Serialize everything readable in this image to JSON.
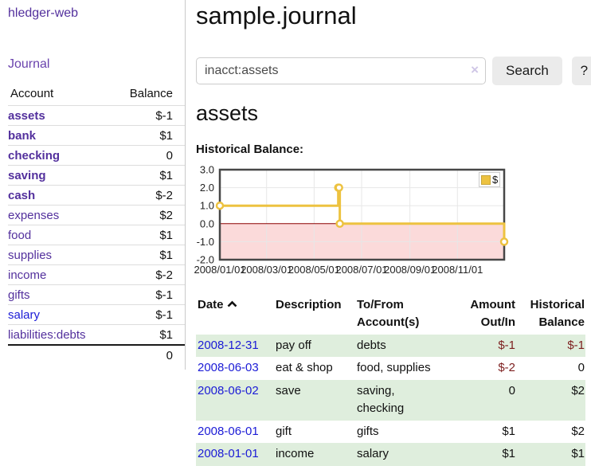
{
  "app": {
    "title": "hledger-web"
  },
  "sidebar": {
    "journal_link": "Journal",
    "table": {
      "headers": {
        "account": "Account",
        "balance": "Balance"
      },
      "rows": [
        {
          "name": "assets",
          "depth": 0,
          "balance": "$-1"
        },
        {
          "name": "bank",
          "depth": 1,
          "balance": "$1"
        },
        {
          "name": "checking",
          "depth": 2,
          "balance": "0"
        },
        {
          "name": "saving",
          "depth": 2,
          "balance": "$1"
        },
        {
          "name": "cash",
          "depth": 1,
          "balance": "$-2"
        },
        {
          "name": "expenses",
          "depth": 0,
          "balance": "$2"
        },
        {
          "name": "food",
          "depth": 1,
          "balance": "$1"
        },
        {
          "name": "supplies",
          "depth": 1,
          "balance": "$1"
        },
        {
          "name": "income",
          "depth": 0,
          "balance": "$-2"
        },
        {
          "name": "gifts",
          "depth": 1,
          "balance": "$-1"
        },
        {
          "name": "salary",
          "depth": 1,
          "balance": "$-1"
        },
        {
          "name": "liabilities:debts",
          "depth": 0,
          "balance": "$1"
        }
      ],
      "total": "0"
    }
  },
  "main": {
    "title": "sample.journal",
    "search": {
      "value": "inacct:assets",
      "clear_icon": "×",
      "button_label": "Search",
      "help_label": "?"
    },
    "account_heading": "assets",
    "chart_heading": "Historical Balance:"
  },
  "chart_data": {
    "type": "line",
    "title": "Historical Balance",
    "step": true,
    "series": [
      {
        "name": "$",
        "points": [
          {
            "date": "2008-01-01",
            "day": 0,
            "value": 1
          },
          {
            "date": "2008-06-01",
            "day": 152,
            "value": 2
          },
          {
            "date": "2008-06-02",
            "day": 153,
            "value": 2
          },
          {
            "date": "2008-06-03",
            "day": 154,
            "value": 0
          },
          {
            "date": "2008-12-31",
            "day": 365,
            "value": -1
          }
        ]
      }
    ],
    "ylim": [
      -2,
      3
    ],
    "xlim_days": [
      0,
      365
    ],
    "y_ticks": [
      3.0,
      2.0,
      1.0,
      0.0,
      -1.0,
      -2.0
    ],
    "x_ticks": [
      "2008/01/01",
      "2008/03/01",
      "2008/05/01",
      "2008/07/01",
      "2008/09/01",
      "2008/11/01"
    ],
    "x_tick_days": [
      0,
      60,
      121,
      182,
      244,
      305
    ],
    "legend": {
      "label": "$",
      "position": "top-right"
    },
    "grid": true,
    "colors": {
      "line": "#edc240",
      "negative_fill": "#fbdada",
      "zero_line": "#8b0000",
      "grid": "#e7e7e7",
      "border": "#474747"
    }
  },
  "register": {
    "headers": {
      "date": "Date",
      "description": "Description",
      "accounts": "To/From Account(s)",
      "amount": "Amount Out/In",
      "balance": "Historical Balance"
    },
    "rows": [
      {
        "date": "2008-12-31",
        "description": "pay off",
        "accounts": "debts",
        "amount": "$-1",
        "balance": "$-1"
      },
      {
        "date": "2008-06-03",
        "description": "eat & shop",
        "accounts": "food, supplies",
        "amount": "$-2",
        "balance": "0"
      },
      {
        "date": "2008-06-02",
        "description": "save",
        "accounts": "saving, checking",
        "amount": "0",
        "balance": "$2"
      },
      {
        "date": "2008-06-01",
        "description": "gift",
        "accounts": "gifts",
        "amount": "$1",
        "balance": "$2"
      },
      {
        "date": "2008-01-01",
        "description": "income",
        "accounts": "salary",
        "amount": "$1",
        "balance": "$1"
      }
    ]
  }
}
